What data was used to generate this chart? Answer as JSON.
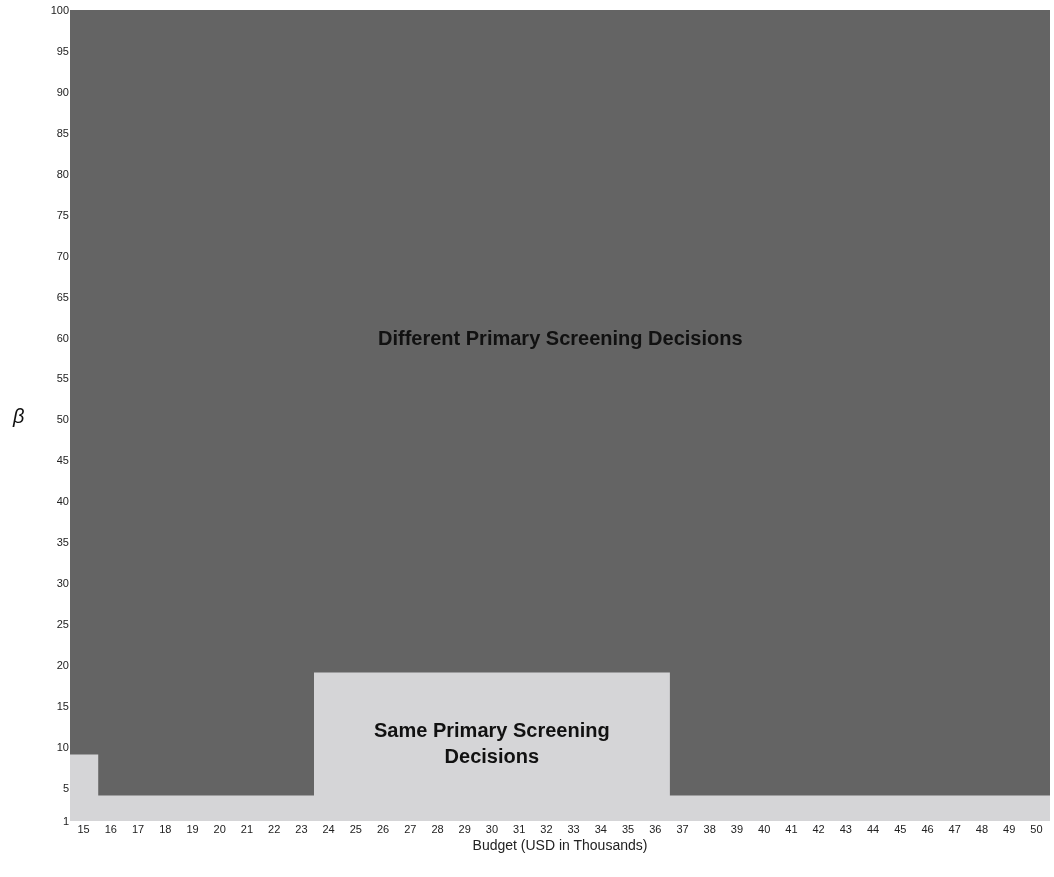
{
  "chart_data": {
    "type": "area",
    "xlabel": "Budget (USD in Thousands)",
    "ylabel": "β",
    "x": [
      14.5,
      15.5,
      15.5,
      23.5,
      23.5,
      36.5,
      36.5,
      50.5
    ],
    "series": [
      {
        "name": "Same Primary Screening Decisions",
        "color": "#d5d5d7",
        "values": [
          9,
          9,
          4,
          4,
          19,
          19,
          4,
          4
        ]
      }
    ],
    "bands": [
      {
        "axis": "y",
        "from": 1,
        "to": 100,
        "label": "Different Primary Screening Decisions",
        "color": "#646464"
      }
    ],
    "xlim": [
      14.5,
      50.5
    ],
    "xticks": [
      15,
      16,
      17,
      18,
      19,
      20,
      21,
      22,
      23,
      24,
      25,
      26,
      27,
      28,
      29,
      30,
      31,
      32,
      33,
      34,
      35,
      36,
      37,
      38,
      39,
      40,
      41,
      42,
      43,
      44,
      45,
      46,
      47,
      48,
      49,
      50
    ],
    "ylim": [
      1,
      100
    ],
    "yticks": [
      1,
      5,
      10,
      15,
      20,
      25,
      30,
      35,
      40,
      45,
      50,
      55,
      60,
      65,
      70,
      75,
      80,
      85,
      90,
      95,
      100
    ],
    "legend": false
  }
}
